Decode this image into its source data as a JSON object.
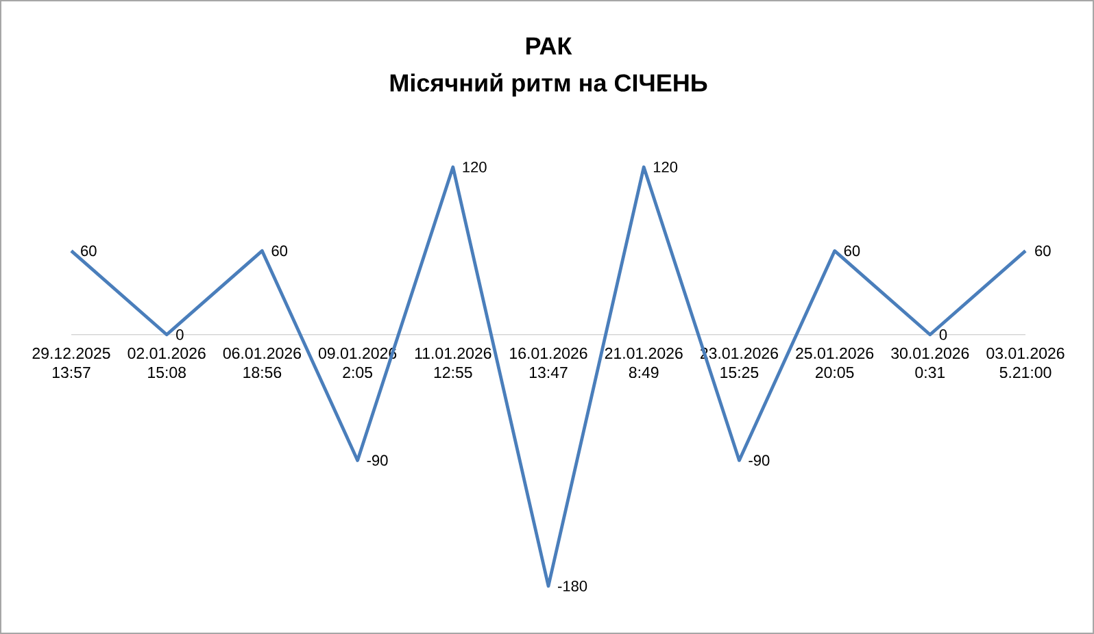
{
  "chart_data": {
    "type": "line",
    "title": "РАК",
    "subtitle": "Місячний ритм на СІЧЕНЬ",
    "categories": [
      "29.12.2025 13:57",
      "02.01.2026 15:08",
      "06.01.2026 18:56",
      "09.01.2026 2:05",
      "11.01.2026 12:55",
      "16.01.2026 13:47",
      "21.01.2026 8:49",
      "23.01.2026 15:25",
      "25.01.2026 20:05",
      "30.01.2026 0:31",
      "03.01.2026 5.21:00"
    ],
    "series": [
      {
        "color": "#4a7ebb",
        "values": [
          60,
          0,
          60,
          -90,
          120,
          -180,
          120,
          -90,
          60,
          0,
          60
        ]
      }
    ],
    "data_labels": true,
    "grid": false,
    "marker": "none",
    "line_style": "solid",
    "tick_labels": "x"
  }
}
